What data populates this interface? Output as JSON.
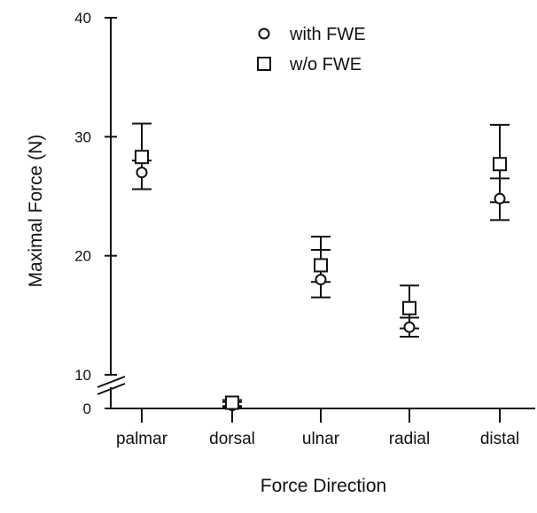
{
  "chart_data": {
    "type": "scatter",
    "title": "",
    "xlabel": "Force Direction",
    "ylabel": "Maximal Force (N)",
    "categories": [
      "palmar",
      "dorsal",
      "ulnar",
      "radial",
      "distal"
    ],
    "y_ticks": [
      0,
      10,
      20,
      30,
      40
    ],
    "ylim": [
      0,
      40
    ],
    "y_axis_break": {
      "between": [
        0,
        10
      ]
    },
    "grid": false,
    "legend": {
      "placement": "top-center"
    },
    "series": [
      {
        "name": "with FWE",
        "marker": "circle",
        "values": [
          27.0,
          2.0,
          18.0,
          14.0,
          24.8
        ],
        "error_low": [
          25.6,
          1.8,
          16.5,
          13.2,
          23.0
        ],
        "error_high": [
          28.0,
          2.5,
          20.5,
          14.8,
          26.5
        ]
      },
      {
        "name": "w/o FWE",
        "marker": "square",
        "values": [
          28.3,
          2.4,
          19.2,
          15.6,
          27.7
        ],
        "error_low": [
          25.6,
          1.9,
          17.8,
          13.9,
          24.5
        ],
        "error_high": [
          31.1,
          2.8,
          21.6,
          17.5,
          31.0
        ]
      }
    ]
  }
}
